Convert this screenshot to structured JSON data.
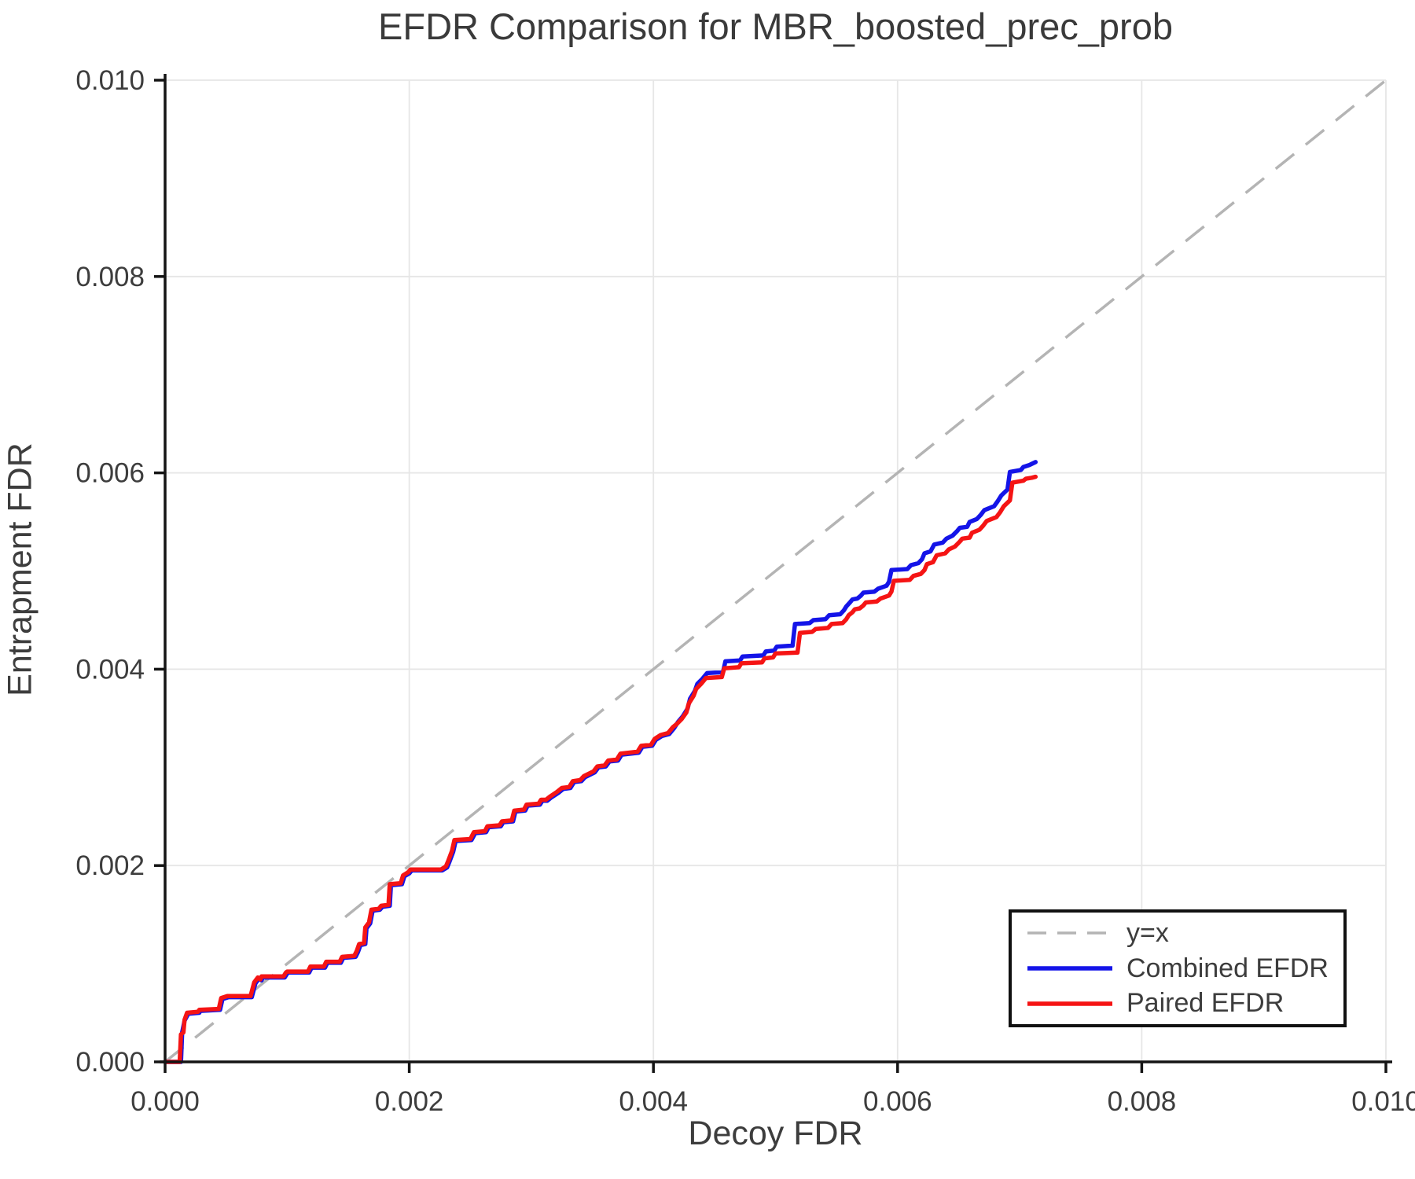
{
  "chart_data": {
    "type": "line",
    "title": "EFDR Comparison for MBR_boosted_prec_prob",
    "xlabel": "Decoy FDR",
    "ylabel": "Entrapment FDR",
    "xlim": [
      0.0,
      0.01
    ],
    "ylim": [
      0.0,
      0.01
    ],
    "x_ticks": [
      0.0,
      0.002,
      0.004,
      0.006,
      0.008,
      0.01
    ],
    "x_tick_labels": [
      "0.000",
      "0.002",
      "0.004",
      "0.006",
      "0.008",
      "0.010"
    ],
    "y_ticks": [
      0.0,
      0.002,
      0.004,
      0.006,
      0.008,
      0.01
    ],
    "y_tick_labels": [
      "0.000",
      "0.002",
      "0.004",
      "0.006",
      "0.008",
      "0.010"
    ],
    "grid": true,
    "legend_position": "lower right",
    "reference_line": {
      "label": "y=x",
      "x": [
        0.0,
        0.01
      ],
      "y": [
        0.0,
        0.01
      ],
      "color": "#b4b4b4",
      "dashed": true
    },
    "series": [
      {
        "name": "Combined EFDR",
        "color": "#1414e8",
        "x": [
          0,
          0.00013,
          0.00014,
          0.00016,
          0.00019,
          0.00028,
          0.00029,
          0.00045,
          0.00047,
          0.00052,
          0.00071,
          0.00074,
          0.00077,
          0.00079,
          0.0008,
          0.00098,
          0.001,
          0.00101,
          0.00118,
          0.0012,
          0.00131,
          0.00133,
          0.00144,
          0.00146,
          0.00156,
          0.00158,
          0.0016,
          0.00164,
          0.00165,
          0.00168,
          0.0017,
          0.00176,
          0.00178,
          0.00184,
          0.00185,
          0.00194,
          0.00196,
          0.002,
          0.00202,
          0.00227,
          0.00231,
          0.00233,
          0.00236,
          0.00238,
          0.00251,
          0.00254,
          0.00263,
          0.00265,
          0.00275,
          0.00277,
          0.00285,
          0.00287,
          0.00295,
          0.00297,
          0.00307,
          0.00309,
          0.00313,
          0.00316,
          0.00322,
          0.00326,
          0.00332,
          0.00335,
          0.00341,
          0.00344,
          0.00352,
          0.00355,
          0.00361,
          0.00364,
          0.00371,
          0.00374,
          0.00388,
          0.00391,
          0.00399,
          0.00402,
          0.00407,
          0.00413,
          0.00417,
          0.0042,
          0.00424,
          0.00428,
          0.0043,
          0.00434,
          0.00436,
          0.0044,
          0.00444,
          0.00457,
          0.00459,
          0.00471,
          0.00473,
          0.0049,
          0.00492,
          0.00499,
          0.00501,
          0.00514,
          0.00516,
          0.00528,
          0.00531,
          0.00541,
          0.00544,
          0.00553,
          0.00556,
          0.00558,
          0.00561,
          0.00563,
          0.00567,
          0.0057,
          0.00572,
          0.00581,
          0.00584,
          0.00591,
          0.00593,
          0.00595,
          0.00608,
          0.00611,
          0.00617,
          0.0062,
          0.00622,
          0.00627,
          0.0063,
          0.00637,
          0.0064,
          0.00645,
          0.00649,
          0.00651,
          0.00657,
          0.00659,
          0.00665,
          0.00668,
          0.00671,
          0.00679,
          0.00682,
          0.00685,
          0.0069,
          0.00692,
          0.00701,
          0.00703,
          0.00708,
          0.00713
        ],
        "y": [
          0,
          0,
          0.0003,
          0.00042,
          0.00049,
          0.0005,
          0.00052,
          0.00053,
          0.00064,
          0.00066,
          0.00066,
          0.0008,
          0.00085,
          0.00083,
          0.00086,
          0.00086,
          0.0009,
          0.00091,
          0.00091,
          0.00096,
          0.00096,
          0.00101,
          0.00101,
          0.00106,
          0.00107,
          0.00112,
          0.00119,
          0.0012,
          0.00136,
          0.00141,
          0.00154,
          0.00155,
          0.00158,
          0.00159,
          0.0018,
          0.00181,
          0.00189,
          0.00192,
          0.00195,
          0.00195,
          0.00198,
          0.00204,
          0.00214,
          0.00225,
          0.00226,
          0.00233,
          0.00234,
          0.00239,
          0.0024,
          0.00244,
          0.00245,
          0.00255,
          0.00256,
          0.00261,
          0.00262,
          0.00266,
          0.00266,
          0.00269,
          0.00274,
          0.00278,
          0.00279,
          0.00285,
          0.00286,
          0.0029,
          0.00295,
          0.003,
          0.00301,
          0.00306,
          0.00307,
          0.00313,
          0.00315,
          0.00321,
          0.00322,
          0.00328,
          0.00332,
          0.00334,
          0.0034,
          0.00346,
          0.00352,
          0.0036,
          0.0037,
          0.00378,
          0.00385,
          0.0039,
          0.00396,
          0.00397,
          0.00408,
          0.00409,
          0.00413,
          0.00414,
          0.00418,
          0.00419,
          0.00423,
          0.00424,
          0.00446,
          0.00447,
          0.0045,
          0.00451,
          0.00455,
          0.00456,
          0.0046,
          0.00464,
          0.00468,
          0.00471,
          0.00472,
          0.00475,
          0.00478,
          0.00479,
          0.00482,
          0.00485,
          0.00489,
          0.00501,
          0.00502,
          0.00506,
          0.00508,
          0.00512,
          0.00518,
          0.0052,
          0.00527,
          0.00529,
          0.00533,
          0.00536,
          0.00541,
          0.00544,
          0.00545,
          0.0055,
          0.00553,
          0.00557,
          0.00562,
          0.00566,
          0.00571,
          0.00577,
          0.00583,
          0.00601,
          0.00603,
          0.00606,
          0.00608,
          0.00611
        ]
      },
      {
        "name": "Paired EFDR",
        "color": "#f51414",
        "x": [
          0,
          0.00012,
          0.00013,
          0.00015,
          0.00016,
          0.00018,
          0.00027,
          0.00028,
          0.00044,
          0.00046,
          0.00051,
          0.0007,
          0.00073,
          0.00076,
          0.00078,
          0.00079,
          0.00097,
          0.00099,
          0.001,
          0.00117,
          0.00119,
          0.0013,
          0.00132,
          0.00143,
          0.00145,
          0.00155,
          0.00157,
          0.00159,
          0.00163,
          0.00164,
          0.00167,
          0.00169,
          0.00175,
          0.00177,
          0.00183,
          0.00184,
          0.00193,
          0.00195,
          0.00199,
          0.00201,
          0.00226,
          0.0023,
          0.00232,
          0.00235,
          0.00237,
          0.0025,
          0.00253,
          0.00262,
          0.00264,
          0.00274,
          0.00276,
          0.00284,
          0.00286,
          0.00294,
          0.00296,
          0.00306,
          0.00308,
          0.00312,
          0.00315,
          0.00321,
          0.00325,
          0.00331,
          0.00334,
          0.0034,
          0.00343,
          0.00351,
          0.00354,
          0.0036,
          0.00363,
          0.0037,
          0.00373,
          0.00387,
          0.0039,
          0.00398,
          0.00401,
          0.00406,
          0.00412,
          0.00416,
          0.00419,
          0.00423,
          0.00427,
          0.00429,
          0.00433,
          0.00435,
          0.00439,
          0.00443,
          0.00456,
          0.00458,
          0.0047,
          0.00472,
          0.00489,
          0.00491,
          0.00498,
          0.005,
          0.00518,
          0.0052,
          0.0053,
          0.00533,
          0.00543,
          0.00546,
          0.00555,
          0.00558,
          0.0056,
          0.00563,
          0.00565,
          0.00569,
          0.00572,
          0.00574,
          0.00583,
          0.00586,
          0.00593,
          0.00595,
          0.00597,
          0.0061,
          0.00613,
          0.00619,
          0.00622,
          0.00624,
          0.00629,
          0.00632,
          0.00639,
          0.00642,
          0.00647,
          0.00651,
          0.00653,
          0.00659,
          0.00661,
          0.00667,
          0.0067,
          0.00673,
          0.00681,
          0.00684,
          0.00687,
          0.00692,
          0.00694,
          0.00703,
          0.00705,
          0.0071,
          0.00713
        ],
        "y": [
          0,
          0,
          0.00028,
          0.0003,
          0.00043,
          0.0005,
          0.00051,
          0.00053,
          0.00054,
          0.00065,
          0.00067,
          0.00067,
          0.00081,
          0.00086,
          0.00084,
          0.00087,
          0.00087,
          0.00091,
          0.00092,
          0.00092,
          0.00097,
          0.00097,
          0.00102,
          0.00102,
          0.00107,
          0.00108,
          0.00113,
          0.0012,
          0.00121,
          0.00137,
          0.00142,
          0.00155,
          0.00156,
          0.00159,
          0.0016,
          0.00181,
          0.00182,
          0.0019,
          0.00193,
          0.00196,
          0.00196,
          0.00199,
          0.00205,
          0.00215,
          0.00226,
          0.00227,
          0.00234,
          0.00235,
          0.0024,
          0.00241,
          0.00245,
          0.00246,
          0.00256,
          0.00257,
          0.00262,
          0.00263,
          0.00267,
          0.00267,
          0.0027,
          0.00275,
          0.00279,
          0.0028,
          0.00286,
          0.00287,
          0.00291,
          0.00296,
          0.00301,
          0.00302,
          0.00307,
          0.00308,
          0.00314,
          0.00316,
          0.00322,
          0.00323,
          0.00329,
          0.00333,
          0.00335,
          0.00341,
          0.00344,
          0.00349,
          0.00356,
          0.00365,
          0.00373,
          0.0038,
          0.00385,
          0.00391,
          0.00392,
          0.00401,
          0.00402,
          0.00406,
          0.00407,
          0.00411,
          0.00412,
          0.00416,
          0.00417,
          0.00437,
          0.00438,
          0.00441,
          0.00442,
          0.00446,
          0.00447,
          0.00451,
          0.00455,
          0.00458,
          0.00461,
          0.00462,
          0.00465,
          0.00468,
          0.00469,
          0.00472,
          0.00475,
          0.00479,
          0.0049,
          0.00491,
          0.00495,
          0.00497,
          0.00501,
          0.00507,
          0.00509,
          0.00516,
          0.00518,
          0.00522,
          0.00525,
          0.0053,
          0.00533,
          0.00534,
          0.00539,
          0.00542,
          0.00546,
          0.00551,
          0.00555,
          0.0056,
          0.00566,
          0.00572,
          0.0059,
          0.00592,
          0.00594,
          0.00595,
          0.00596
        ]
      }
    ]
  },
  "colors": {
    "background": "#ffffff",
    "grid": "#e6e6e6",
    "axis": "#141414",
    "text": "#3d3d3d",
    "title": "#3a3a3a",
    "reference": "#b4b4b4",
    "combined": "#1414e8",
    "paired": "#f51414"
  }
}
